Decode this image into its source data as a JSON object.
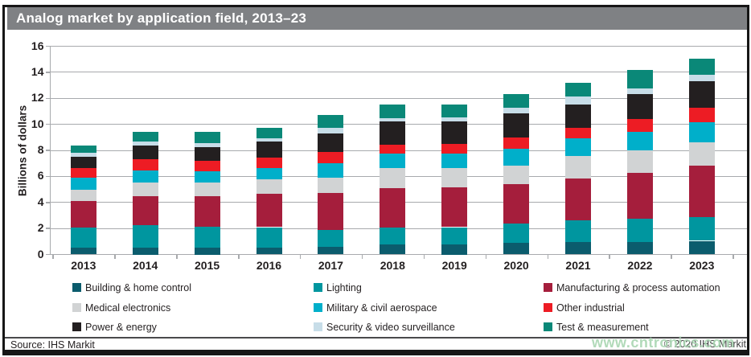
{
  "window": {
    "title": "Analog market by application field, 2013–23"
  },
  "footer": {
    "source": "Source: IHS Markit",
    "copyright": "© 2020 IHS Markit",
    "watermark": "www.cntronics.com"
  },
  "colors": {
    "title_bar": "#7f8184",
    "frame": "#161616",
    "gridline": "#a8aaad",
    "axis_text": "#231f20",
    "watermark": "#a9d6b2"
  },
  "chart_data": {
    "type": "bar",
    "stacked": true,
    "title": "Analog market by application field, 2013–23",
    "xlabel": "",
    "ylabel": "Billions of dollars",
    "ylim": [
      0,
      16
    ],
    "ytick_step": 2,
    "yticks": [
      0,
      2,
      4,
      6,
      8,
      10,
      12,
      14,
      16
    ],
    "grid": true,
    "legend_position": "bottom",
    "legend_columns": 3,
    "categories": [
      "2013",
      "2014",
      "2015",
      "2016",
      "2017",
      "2018",
      "2019",
      "2020",
      "2021",
      "2022",
      "2023"
    ],
    "series": [
      {
        "name": "Building & home control",
        "color": "#0b5c6d",
        "values": [
          0.55,
          0.5,
          0.5,
          0.55,
          0.6,
          0.8,
          0.75,
          0.9,
          0.95,
          0.95,
          1.05
        ]
      },
      {
        "name": "Lighting",
        "color": "#00969f",
        "values": [
          1.55,
          1.75,
          1.65,
          1.55,
          1.3,
          1.3,
          1.35,
          1.45,
          1.65,
          1.8,
          1.85
        ]
      },
      {
        "name": "Manufacturing & process automation",
        "color": "#a51e3c",
        "values": [
          2.0,
          2.25,
          2.35,
          2.55,
          2.8,
          3.0,
          3.05,
          3.05,
          3.25,
          3.5,
          3.95
        ]
      },
      {
        "name": "Medical electronics",
        "color": "#d1d3d4",
        "values": [
          0.9,
          1.05,
          1.05,
          1.15,
          1.2,
          1.55,
          1.5,
          1.4,
          1.7,
          1.75,
          1.75
        ]
      },
      {
        "name": "Military & civil aerospace",
        "color": "#00afca",
        "values": [
          0.9,
          0.9,
          0.85,
          0.85,
          1.1,
          1.1,
          1.1,
          1.35,
          1.4,
          1.4,
          1.55
        ]
      },
      {
        "name": "Other industrial",
        "color": "#ed1c24",
        "values": [
          0.75,
          0.85,
          0.8,
          0.8,
          0.9,
          0.7,
          0.75,
          0.85,
          0.8,
          1.0,
          1.1
        ]
      },
      {
        "name": "Power & energy",
        "color": "#231f20",
        "values": [
          0.85,
          1.05,
          1.05,
          1.2,
          1.4,
          1.75,
          1.75,
          1.85,
          1.8,
          1.9,
          2.05
        ]
      },
      {
        "name": "Security & video surveillance",
        "color": "#c7dde8",
        "values": [
          0.3,
          0.3,
          0.3,
          0.3,
          0.45,
          0.3,
          0.3,
          0.4,
          0.6,
          0.45,
          0.5
        ]
      },
      {
        "name": "Test & measurement",
        "color": "#0a8878",
        "values": [
          0.6,
          0.75,
          0.85,
          0.75,
          0.95,
          1.0,
          0.95,
          1.1,
          1.05,
          1.4,
          1.25
        ]
      }
    ]
  }
}
